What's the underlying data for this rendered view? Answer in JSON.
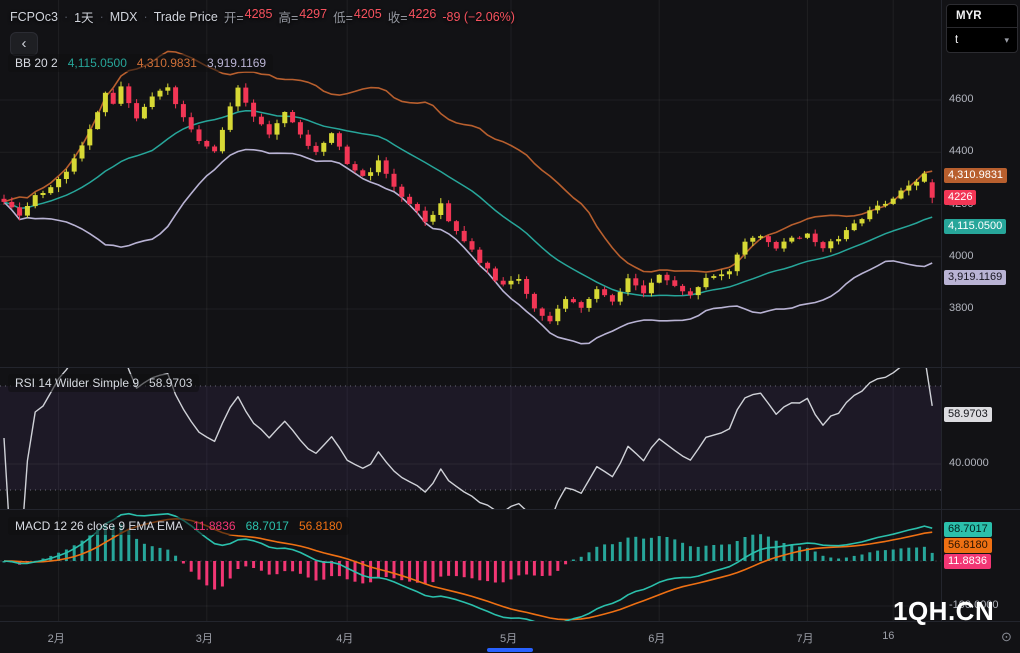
{
  "header": {
    "symbol": "FCPOc3",
    "separator": "·",
    "interval": "1天",
    "exchange": "MDX",
    "series_type": "Trade Price",
    "ohlc": [
      {
        "label": "开=",
        "value": "4285"
      },
      {
        "label": "高=",
        "value": "4297"
      },
      {
        "label": "低=",
        "value": "4205"
      },
      {
        "label": "收=",
        "value": "4226"
      }
    ],
    "change": "-89 (−2.06%)"
  },
  "icons": {
    "back": "‹",
    "chevron_down": "▾",
    "timezone": "⊙"
  },
  "toolbar": {
    "currency": "MYR",
    "unit": "t"
  },
  "legends": {
    "bb": {
      "title": "BB 20 2",
      "basis": "4,115.0500",
      "upper": "4,310.9831",
      "lower": "3,919.1169"
    },
    "rsi": {
      "title": "RSI 14 Wilder Simple 9",
      "value": "58.9703"
    },
    "macd": {
      "title": "MACD 12 26 close 9 EMA EMA",
      "hist": "11.8836",
      "macd": "68.7017",
      "signal": "56.8180"
    }
  },
  "price_axis": {
    "badges": [
      {
        "name": "bb-upper-price-label",
        "text": "4,310.9831",
        "value": 4310.9831,
        "color": "bbUpper",
        "fg": "#ffffff"
      },
      {
        "name": "last-price-label",
        "text": "4226",
        "value": 4226,
        "color": "down",
        "fg": "#ffffff"
      },
      {
        "name": "bb-basis-price-label",
        "text": "4,115.0500",
        "value": 4115.05,
        "color": "bbBasis",
        "fg": "#ffffff"
      },
      {
        "name": "bb-lower-price-label",
        "text": "3,919.1169",
        "value": 3919.1169,
        "color": "bbLower",
        "fg": "#17141f"
      }
    ]
  },
  "rsi_axis": {
    "badge": {
      "name": "rsi-value-label",
      "text": "58.9703",
      "value": 58.9703,
      "color": "rsiBadge",
      "fg": "#14151a"
    },
    "tick_label": "40.0000",
    "tick_value": 40
  },
  "macd_axis": {
    "badges": [
      {
        "name": "macd-value-label",
        "text": "68.7017",
        "value": 68.7017,
        "color": "macd",
        "fg": "#03211d"
      },
      {
        "name": "signal-value-label",
        "text": "56.8180",
        "value": 56.818,
        "color": "signal",
        "fg": "#2b1402"
      },
      {
        "name": "hist-value-label",
        "text": "11.8836",
        "value": 11.8836,
        "color": "histNeg",
        "fg": "#ffffff"
      }
    ],
    "tick_label": "-100.0000",
    "tick_value": -100
  },
  "watermark": {
    "text": "1QH.CN"
  },
  "colors": {
    "background": "#121215",
    "up": "#d7d935",
    "down": "#f23655",
    "bbUpper": "#b85f2e",
    "bbUpperText": "#cf7038",
    "bbBasis": "#27a69a",
    "bbLower": "#b9b3d4",
    "rsi": "#d0d2d8",
    "rsiZone": "rgba(126,87,194,0.10)",
    "rsiBadge": "#dcdce0",
    "macd": "#2bc0ac",
    "signal": "#ef7013",
    "histPos": "#27a69a",
    "histNeg": "#f23674",
    "redText": "#f7525f",
    "scrollThumb": "#2962ff"
  },
  "chart_data": {
    "type": "candlestick",
    "title": "FCPOc3 1天 MDX Trade Price",
    "candle_count": 120,
    "last_candle_ohlc": [
      4285,
      4297,
      4205,
      4226
    ],
    "price_anchors": [
      [
        0,
        4205
      ],
      [
        2,
        4160
      ],
      [
        4,
        4235
      ],
      [
        6,
        4270
      ],
      [
        8,
        4330
      ],
      [
        10,
        4420
      ],
      [
        12,
        4555
      ],
      [
        13,
        4620
      ],
      [
        14,
        4590
      ],
      [
        15,
        4645
      ],
      [
        17,
        4520
      ],
      [
        19,
        4615
      ],
      [
        21,
        4640
      ],
      [
        23,
        4530
      ],
      [
        25,
        4445
      ],
      [
        27,
        4400
      ],
      [
        28,
        4480
      ],
      [
        30,
        4655
      ],
      [
        32,
        4540
      ],
      [
        34,
        4460
      ],
      [
        36,
        4550
      ],
      [
        38,
        4470
      ],
      [
        40,
        4395
      ],
      [
        42,
        4465
      ],
      [
        44,
        4360
      ],
      [
        46,
        4300
      ],
      [
        48,
        4360
      ],
      [
        50,
        4260
      ],
      [
        52,
        4200
      ],
      [
        54,
        4135
      ],
      [
        56,
        4195
      ],
      [
        58,
        4090
      ],
      [
        60,
        4025
      ],
      [
        62,
        3945
      ],
      [
        64,
        3890
      ],
      [
        66,
        3915
      ],
      [
        68,
        3800
      ],
      [
        70,
        3755
      ],
      [
        72,
        3845
      ],
      [
        74,
        3795
      ],
      [
        76,
        3875
      ],
      [
        78,
        3835
      ],
      [
        80,
        3910
      ],
      [
        82,
        3865
      ],
      [
        84,
        3940
      ],
      [
        86,
        3895
      ],
      [
        88,
        3855
      ],
      [
        90,
        3915
      ],
      [
        93,
        3935
      ],
      [
        95,
        4065
      ],
      [
        97,
        4085
      ],
      [
        99,
        4040
      ],
      [
        101,
        4065
      ],
      [
        103,
        4085
      ],
      [
        105,
        4035
      ],
      [
        107,
        4065
      ],
      [
        109,
        4120
      ],
      [
        111,
        4175
      ],
      [
        113,
        4205
      ],
      [
        115,
        4255
      ],
      [
        117,
        4295
      ],
      [
        118,
        4312
      ],
      [
        119,
        4226
      ]
    ],
    "price_ticks": [
      4600,
      4400,
      4200,
      4000,
      3800
    ],
    "ylim_price": [
      3597,
      4696
    ],
    "time_ticks": [
      {
        "label": "2月",
        "index": 7
      },
      {
        "label": "3月",
        "index": 26
      },
      {
        "label": "4月",
        "index": 44
      },
      {
        "label": "5月",
        "index": 65
      },
      {
        "label": "6月",
        "index": 84
      },
      {
        "label": "7月",
        "index": 103
      },
      {
        "label": "16",
        "index": 114
      }
    ],
    "indicators": {
      "bb": {
        "length": 20,
        "mult": 2,
        "last_basis": 4115.05,
        "last_upper": 4310.9831,
        "last_lower": 3919.1169
      },
      "rsi": {
        "length": 14,
        "smoothing": "Wilder",
        "ma": "Simple 9",
        "last": 58.9703,
        "bands": [
          70,
          30
        ],
        "mid": 40
      },
      "macd": {
        "fast": 12,
        "slow": 26,
        "source": "close",
        "signal": 9,
        "last_macd": 68.7017,
        "last_signal": 56.818,
        "last_hist": 11.8836
      }
    }
  }
}
